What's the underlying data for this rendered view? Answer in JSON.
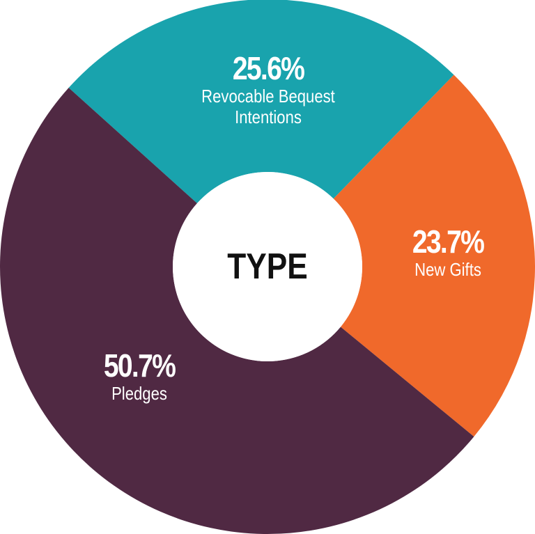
{
  "chart_data": {
    "type": "donut",
    "center_label": "TYPE",
    "categories": [
      "Revocable Bequest Intentions",
      "New Gifts",
      "Pledges"
    ],
    "values": [
      25.6,
      23.7,
      50.7
    ],
    "value_labels": [
      "25.6%",
      "23.7%",
      "50.7%"
    ],
    "colors": [
      "#19a3ad",
      "#f0692b",
      "#502943"
    ]
  }
}
